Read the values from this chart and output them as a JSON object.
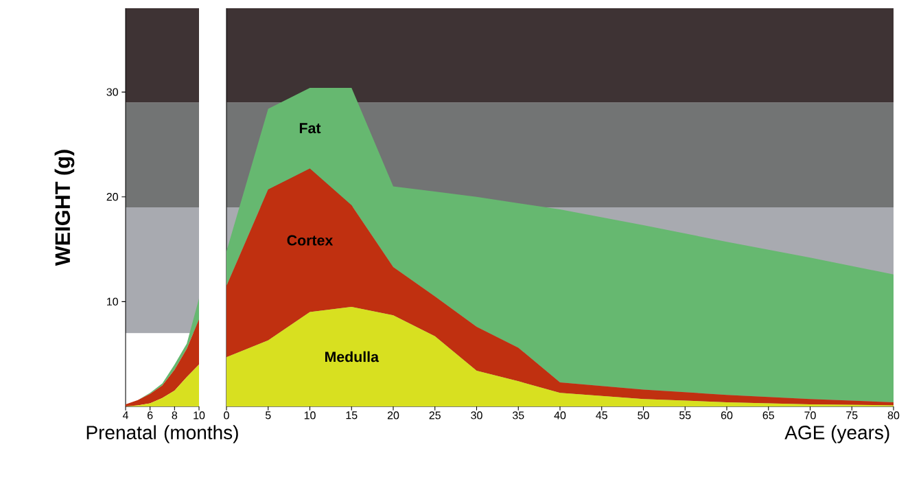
{
  "chart_data": [
    {
      "type": "area",
      "xlabel": "Prenatal (months)",
      "ylabel": "WEIGHT (g)",
      "stacked": true,
      "x": [
        4,
        5,
        6,
        7,
        8,
        9,
        10
      ],
      "xlim": [
        4,
        10
      ],
      "ylim": [
        0,
        38
      ],
      "xticks": [
        4,
        6,
        8,
        10
      ],
      "yticks": [
        10,
        20,
        30
      ],
      "bands": [
        {
          "axis": "y",
          "from": 7,
          "to": 19,
          "color": "#a8aab0"
        },
        {
          "axis": "y",
          "from": 19,
          "to": 29,
          "color": "#727474"
        },
        {
          "axis": "y",
          "from": 29,
          "to": 38,
          "color": "#3e3334"
        }
      ],
      "series": [
        {
          "color": "#d8e020",
          "values": [
            0,
            0.1,
            0.3,
            0.8,
            1.5,
            2.8,
            4.0
          ]
        },
        {
          "color": "#c03010",
          "values": [
            0.2,
            0.5,
            0.9,
            1.2,
            2.0,
            2.7,
            4.3
          ]
        },
        {
          "color": "#66b870",
          "values": [
            0,
            0,
            0.1,
            0.2,
            0.5,
            0.5,
            2.0
          ]
        }
      ]
    },
    {
      "type": "area",
      "xlabel": "AGE (years)",
      "stacked": true,
      "tick_labels": "x",
      "x": [
        0,
        5,
        10,
        15,
        20,
        25,
        30,
        35,
        40,
        50,
        60,
        70,
        80
      ],
      "xlim": [
        0,
        80
      ],
      "ylim": [
        0,
        38
      ],
      "xticks": [
        0,
        5,
        10,
        15,
        20,
        25,
        30,
        35,
        40,
        45,
        50,
        55,
        60,
        65,
        70,
        75,
        80
      ],
      "bands": [
        {
          "axis": "y",
          "from": 0,
          "to": 19,
          "color": "#a8aab0"
        },
        {
          "axis": "y",
          "from": 19,
          "to": 29,
          "color": "#727474"
        },
        {
          "axis": "y",
          "from": 29,
          "to": 38,
          "color": "#3e3334"
        }
      ],
      "series": [
        {
          "name": "Medulla",
          "color": "#d8e020",
          "values": [
            4.7,
            6.3,
            9.0,
            9.5,
            8.7,
            6.7,
            3.4,
            2.4,
            1.3,
            0.7,
            0.4,
            0.2,
            0.1
          ]
        },
        {
          "name": "Cortex",
          "color": "#c03010",
          "values": [
            6.8,
            14.4,
            13.7,
            9.7,
            4.6,
            3.8,
            4.2,
            3.2,
            1.0,
            0.9,
            0.7,
            0.5,
            0.3
          ]
        },
        {
          "name": "Fat",
          "color": "#66b870",
          "values": [
            3.3,
            7.7,
            7.7,
            11.2,
            7.7,
            10.0,
            12.4,
            13.8,
            16.5,
            15.7,
            14.6,
            13.5,
            12.2
          ]
        }
      ]
    }
  ]
}
